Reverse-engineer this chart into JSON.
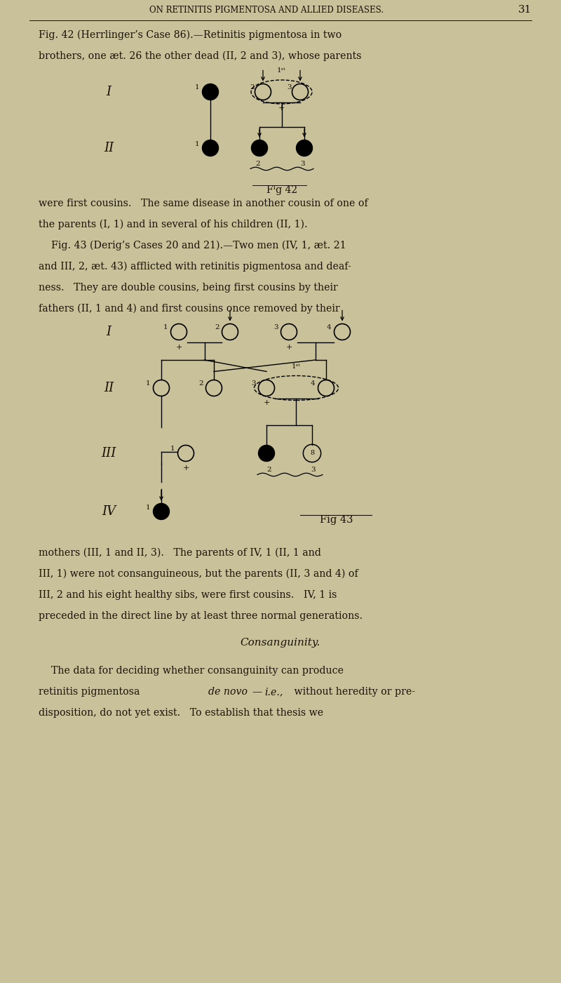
{
  "bg_color": "#c9c19a",
  "text_color": "#1a1008",
  "page_width": 8.0,
  "page_height": 14.01,
  "header_text": "ON RETINITIS PIGMENTOSA AND ALLIED DISEASES.",
  "page_number": "31",
  "fig42_cap1": "Fig. 42 (Herrlinger’s Case 86).—Retinitis pigmentosa in two",
  "fig42_cap2": "brothers, one æt. 26 the other dead (II, 2 and 3), whose parents",
  "fig42_label": "Fᴵg 42",
  "text1": "were first cousins.   The same disease in another cousin of one of",
  "text2": "the parents (I, 1) and in several of his children (II, 1).",
  "text3": "    Fig. 43 (Derig’s Cases 20 and 21).—Two men (IV, 1, æt. 21",
  "text4": "and III, 2, æt. 43) afflicted with retinitis pigmentosa and deaf-",
  "text5": "ness.   They are double cousins, being first cousins by their",
  "text6": "fathers (II, 1 and 4) and first cousins once removed by their",
  "fig43_label": "Fig 43",
  "text7": "mothers (III, 1 and II, 3).   The parents of IV, 1 (II, 1 and",
  "text8": "III, 1) were not consanguineous, but the parents (II, 3 and 4) of",
  "text9": "III, 2 and his eight healthy sibs, were first cousins.   IV, 1 is",
  "text10": "preceded in the direct line by at least three normal generations.",
  "cons_header": "Consanguinity.",
  "fp1": "    The data for deciding whether consanguinity can produce",
  "fp2": "retinitis pigmentosa ",
  "fp2_italic": "de novo",
  "fp2_rest": "—i.e., without heredity or pre-",
  "fp3": "disposition, do not yet exist.   To establish that thesis we"
}
